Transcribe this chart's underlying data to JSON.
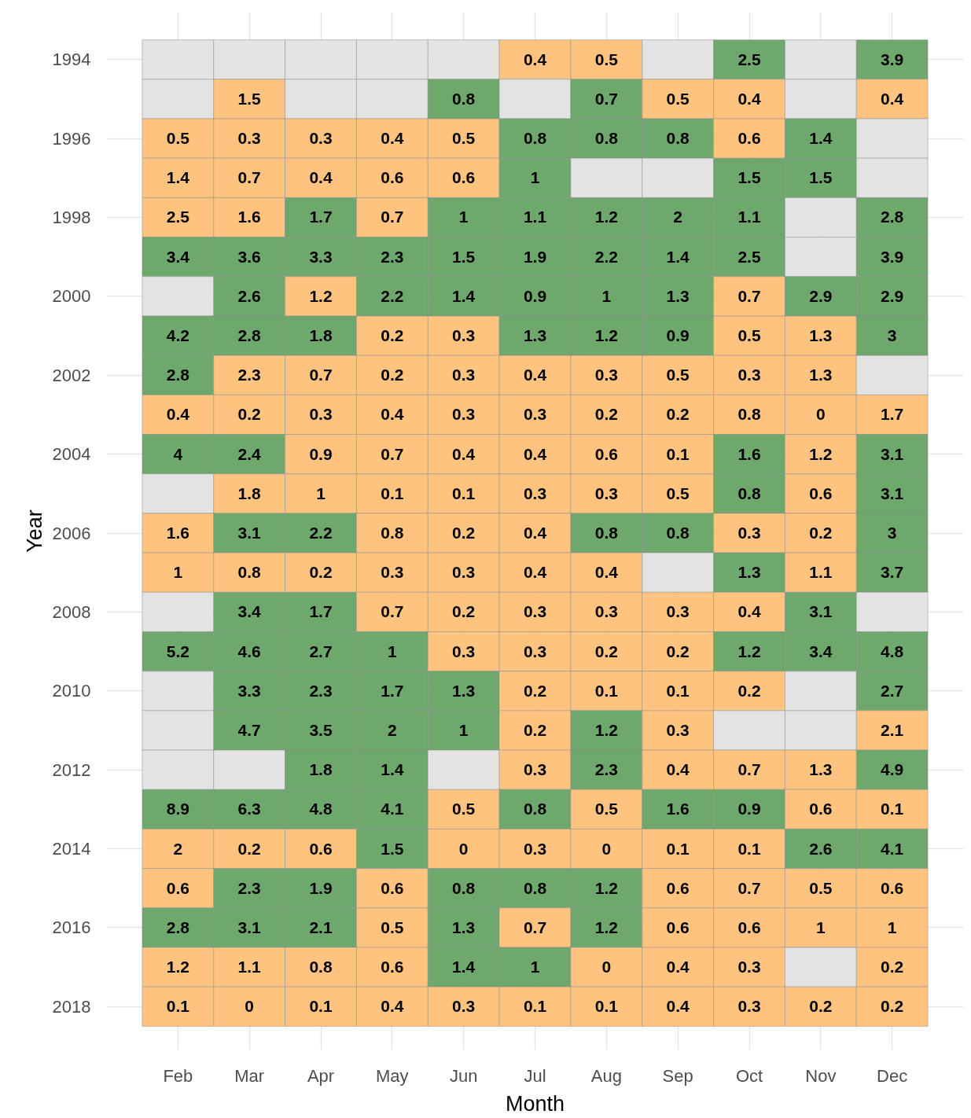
{
  "chart_data": {
    "type": "heatmap",
    "xlabel": "Month",
    "ylabel": "Year",
    "grid": true,
    "data_labels": true,
    "categories": [
      "Feb",
      "Mar",
      "Apr",
      "May",
      "Jun",
      "Jul",
      "Aug",
      "Sep",
      "Oct",
      "Nov",
      "Dec"
    ],
    "y_categories": [
      "1994",
      null,
      "1996",
      null,
      "1998",
      null,
      "2000",
      null,
      "2002",
      null,
      "2004",
      null,
      "2006",
      null,
      "2008",
      null,
      "2010",
      null,
      "2012",
      null,
      "2014",
      null,
      "2016",
      null,
      "2018"
    ],
    "cells": [
      [
        null,
        null,
        null,
        null,
        null,
        0.4,
        0.5,
        null,
        2.5,
        null,
        3.9
      ],
      [
        null,
        1.5,
        null,
        null,
        0.8,
        null,
        0.7,
        0.5,
        0.4,
        null,
        0.4
      ],
      [
        0.5,
        0.3,
        0.3,
        0.4,
        0.5,
        0.8,
        0.8,
        0.8,
        0.6,
        1.4,
        null
      ],
      [
        1.4,
        0.7,
        0.4,
        0.6,
        0.6,
        1,
        null,
        null,
        1.5,
        1.5,
        null
      ],
      [
        2.5,
        1.6,
        1.7,
        0.7,
        1,
        1.1,
        1.2,
        2,
        1.1,
        null,
        2.8
      ],
      [
        3.4,
        3.6,
        3.3,
        2.3,
        1.5,
        1.9,
        2.2,
        1.4,
        2.5,
        null,
        3.9
      ],
      [
        null,
        2.6,
        1.2,
        2.2,
        1.4,
        0.9,
        1,
        1.3,
        0.7,
        2.9,
        2.9
      ],
      [
        4.2,
        2.8,
        1.8,
        0.2,
        0.3,
        1.3,
        1.2,
        0.9,
        0.5,
        1.3,
        3
      ],
      [
        2.8,
        2.3,
        0.7,
        0.2,
        0.3,
        0.4,
        0.3,
        0.5,
        0.3,
        1.3,
        null
      ],
      [
        0.4,
        0.2,
        0.3,
        0.4,
        0.3,
        0.3,
        0.2,
        0.2,
        0.8,
        0,
        1.7
      ],
      [
        4,
        2.4,
        0.9,
        0.7,
        0.4,
        0.4,
        0.6,
        0.1,
        1.6,
        1.2,
        3.1
      ],
      [
        null,
        1.8,
        1,
        0.1,
        0.1,
        0.3,
        0.3,
        0.5,
        0.8,
        0.6,
        3.1
      ],
      [
        1.6,
        3.1,
        2.2,
        0.8,
        0.2,
        0.4,
        0.8,
        0.8,
        0.3,
        0.2,
        3
      ],
      [
        1,
        0.8,
        0.2,
        0.3,
        0.3,
        0.4,
        0.4,
        null,
        1.3,
        1.1,
        3.7
      ],
      [
        null,
        3.4,
        1.7,
        0.7,
        0.2,
        0.3,
        0.3,
        0.3,
        0.4,
        3.1,
        null
      ],
      [
        5.2,
        4.6,
        2.7,
        1,
        0.3,
        0.3,
        0.2,
        0.2,
        1.2,
        3.4,
        4.8
      ],
      [
        null,
        3.3,
        2.3,
        1.7,
        1.3,
        0.2,
        0.1,
        0.1,
        0.2,
        null,
        2.7
      ],
      [
        null,
        4.7,
        3.5,
        2,
        1,
        0.2,
        1.2,
        0.3,
        null,
        null,
        2.1
      ],
      [
        null,
        null,
        1.8,
        1.4,
        null,
        0.3,
        2.3,
        0.4,
        0.7,
        1.3,
        4.9
      ],
      [
        8.9,
        6.3,
        4.8,
        4.1,
        0.5,
        0.8,
        0.5,
        1.6,
        0.9,
        0.6,
        0.1
      ],
      [
        2,
        0.2,
        0.6,
        1.5,
        0,
        0.3,
        0,
        0.1,
        0.1,
        2.6,
        4.1
      ],
      [
        0.6,
        2.3,
        1.9,
        0.6,
        0.8,
        0.8,
        1.2,
        0.6,
        0.7,
        0.5,
        0.6
      ],
      [
        2.8,
        3.1,
        2.1,
        0.5,
        1.3,
        0.7,
        1.2,
        0.6,
        0.6,
        1,
        1
      ],
      [
        1.2,
        1.1,
        0.8,
        0.6,
        1.4,
        1,
        0,
        0.4,
        0.3,
        null,
        0.2
      ],
      [
        0.1,
        0,
        0.1,
        0.4,
        0.3,
        0.1,
        0.1,
        0.4,
        0.3,
        0.2,
        0.2
      ]
    ],
    "colors": [
      [
        null,
        null,
        null,
        null,
        null,
        "#fec47f",
        "#fec47f",
        null,
        "#6ea86c",
        null,
        "#6ea86c"
      ],
      [
        null,
        "#fec47f",
        null,
        null,
        "#6ea86c",
        null,
        "#6ea86c",
        "#fec47f",
        "#fec47f",
        null,
        "#fec47f"
      ],
      [
        "#fec47f",
        "#fec47f",
        "#fec47f",
        "#fec47f",
        "#fec47f",
        "#6ea86c",
        "#6ea86c",
        "#6ea86c",
        "#fec47f",
        "#6ea86c",
        null
      ],
      [
        "#fec47f",
        "#fec47f",
        "#fec47f",
        "#fec47f",
        "#fec47f",
        "#6ea86c",
        null,
        null,
        "#6ea86c",
        "#6ea86c",
        null
      ],
      [
        "#fec47f",
        "#fec47f",
        "#6ea86c",
        "#fec47f",
        "#6ea86c",
        "#6ea86c",
        "#6ea86c",
        "#6ea86c",
        "#6ea86c",
        null,
        "#6ea86c"
      ],
      [
        "#6ea86c",
        "#6ea86c",
        "#6ea86c",
        "#6ea86c",
        "#6ea86c",
        "#6ea86c",
        "#6ea86c",
        "#6ea86c",
        "#6ea86c",
        null,
        "#6ea86c"
      ],
      [
        null,
        "#6ea86c",
        "#fec47f",
        "#6ea86c",
        "#6ea86c",
        "#6ea86c",
        "#6ea86c",
        "#6ea86c",
        "#fec47f",
        "#6ea86c",
        "#6ea86c"
      ],
      [
        "#6ea86c",
        "#6ea86c",
        "#6ea86c",
        "#fec47f",
        "#fec47f",
        "#6ea86c",
        "#6ea86c",
        "#6ea86c",
        "#fec47f",
        "#fec47f",
        "#6ea86c"
      ],
      [
        "#6ea86c",
        "#fec47f",
        "#fec47f",
        "#fec47f",
        "#fec47f",
        "#fec47f",
        "#fec47f",
        "#fec47f",
        "#fec47f",
        "#fec47f",
        null
      ],
      [
        "#fec47f",
        "#fec47f",
        "#fec47f",
        "#fec47f",
        "#fec47f",
        "#fec47f",
        "#fec47f",
        "#fec47f",
        "#fec47f",
        "#fec47f",
        "#fec47f"
      ],
      [
        "#6ea86c",
        "#6ea86c",
        "#fec47f",
        "#fec47f",
        "#fec47f",
        "#fec47f",
        "#fec47f",
        "#fec47f",
        "#6ea86c",
        "#fec47f",
        "#6ea86c"
      ],
      [
        null,
        "#fec47f",
        "#fec47f",
        "#fec47f",
        "#fec47f",
        "#fec47f",
        "#fec47f",
        "#fec47f",
        "#6ea86c",
        "#fec47f",
        "#6ea86c"
      ],
      [
        "#fec47f",
        "#6ea86c",
        "#6ea86c",
        "#fec47f",
        "#fec47f",
        "#fec47f",
        "#6ea86c",
        "#6ea86c",
        "#fec47f",
        "#fec47f",
        "#6ea86c"
      ],
      [
        "#fec47f",
        "#fec47f",
        "#fec47f",
        "#fec47f",
        "#fec47f",
        "#fec47f",
        "#fec47f",
        null,
        "#6ea86c",
        "#fec47f",
        "#6ea86c"
      ],
      [
        null,
        "#6ea86c",
        "#6ea86c",
        "#fec47f",
        "#fec47f",
        "#fec47f",
        "#fec47f",
        "#fec47f",
        "#fec47f",
        "#6ea86c",
        null
      ],
      [
        "#6ea86c",
        "#6ea86c",
        "#6ea86c",
        "#6ea86c",
        "#fec47f",
        "#fec47f",
        "#fec47f",
        "#fec47f",
        "#6ea86c",
        "#6ea86c",
        "#6ea86c"
      ],
      [
        null,
        "#6ea86c",
        "#6ea86c",
        "#6ea86c",
        "#6ea86c",
        "#fec47f",
        "#fec47f",
        "#fec47f",
        "#fec47f",
        null,
        "#6ea86c"
      ],
      [
        null,
        "#6ea86c",
        "#6ea86c",
        "#6ea86c",
        "#6ea86c",
        "#fec47f",
        "#6ea86c",
        "#fec47f",
        null,
        null,
        "#fec47f"
      ],
      [
        null,
        null,
        "#6ea86c",
        "#6ea86c",
        null,
        "#fec47f",
        "#6ea86c",
        "#fec47f",
        "#fec47f",
        "#fec47f",
        "#6ea86c"
      ],
      [
        "#6ea86c",
        "#6ea86c",
        "#6ea86c",
        "#6ea86c",
        "#fec47f",
        "#6ea86c",
        "#fec47f",
        "#6ea86c",
        "#6ea86c",
        "#fec47f",
        "#fec47f"
      ],
      [
        "#fec47f",
        "#fec47f",
        "#fec47f",
        "#6ea86c",
        "#fec47f",
        "#fec47f",
        "#fec47f",
        "#fec47f",
        "#fec47f",
        "#6ea86c",
        "#6ea86c"
      ],
      [
        "#fec47f",
        "#6ea86c",
        "#6ea86c",
        "#fec47f",
        "#6ea86c",
        "#6ea86c",
        "#6ea86c",
        "#fec47f",
        "#fec47f",
        "#fec47f",
        "#fec47f"
      ],
      [
        "#6ea86c",
        "#6ea86c",
        "#6ea86c",
        "#fec47f",
        "#6ea86c",
        "#fec47f",
        "#6ea86c",
        "#fec47f",
        "#fec47f",
        "#fec47f",
        "#fec47f"
      ],
      [
        "#fec47f",
        "#fec47f",
        "#fec47f",
        "#fec47f",
        "#6ea86c",
        "#6ea86c",
        "#fec47f",
        "#fec47f",
        "#fec47f",
        null,
        "#fec47f"
      ],
      [
        "#fec47f",
        "#fec47f",
        "#fec47f",
        "#fec47f",
        "#fec47f",
        "#fec47f",
        "#fec47f",
        "#fec47f",
        "#fec47f",
        "#fec47f",
        "#fec47f"
      ]
    ]
  }
}
